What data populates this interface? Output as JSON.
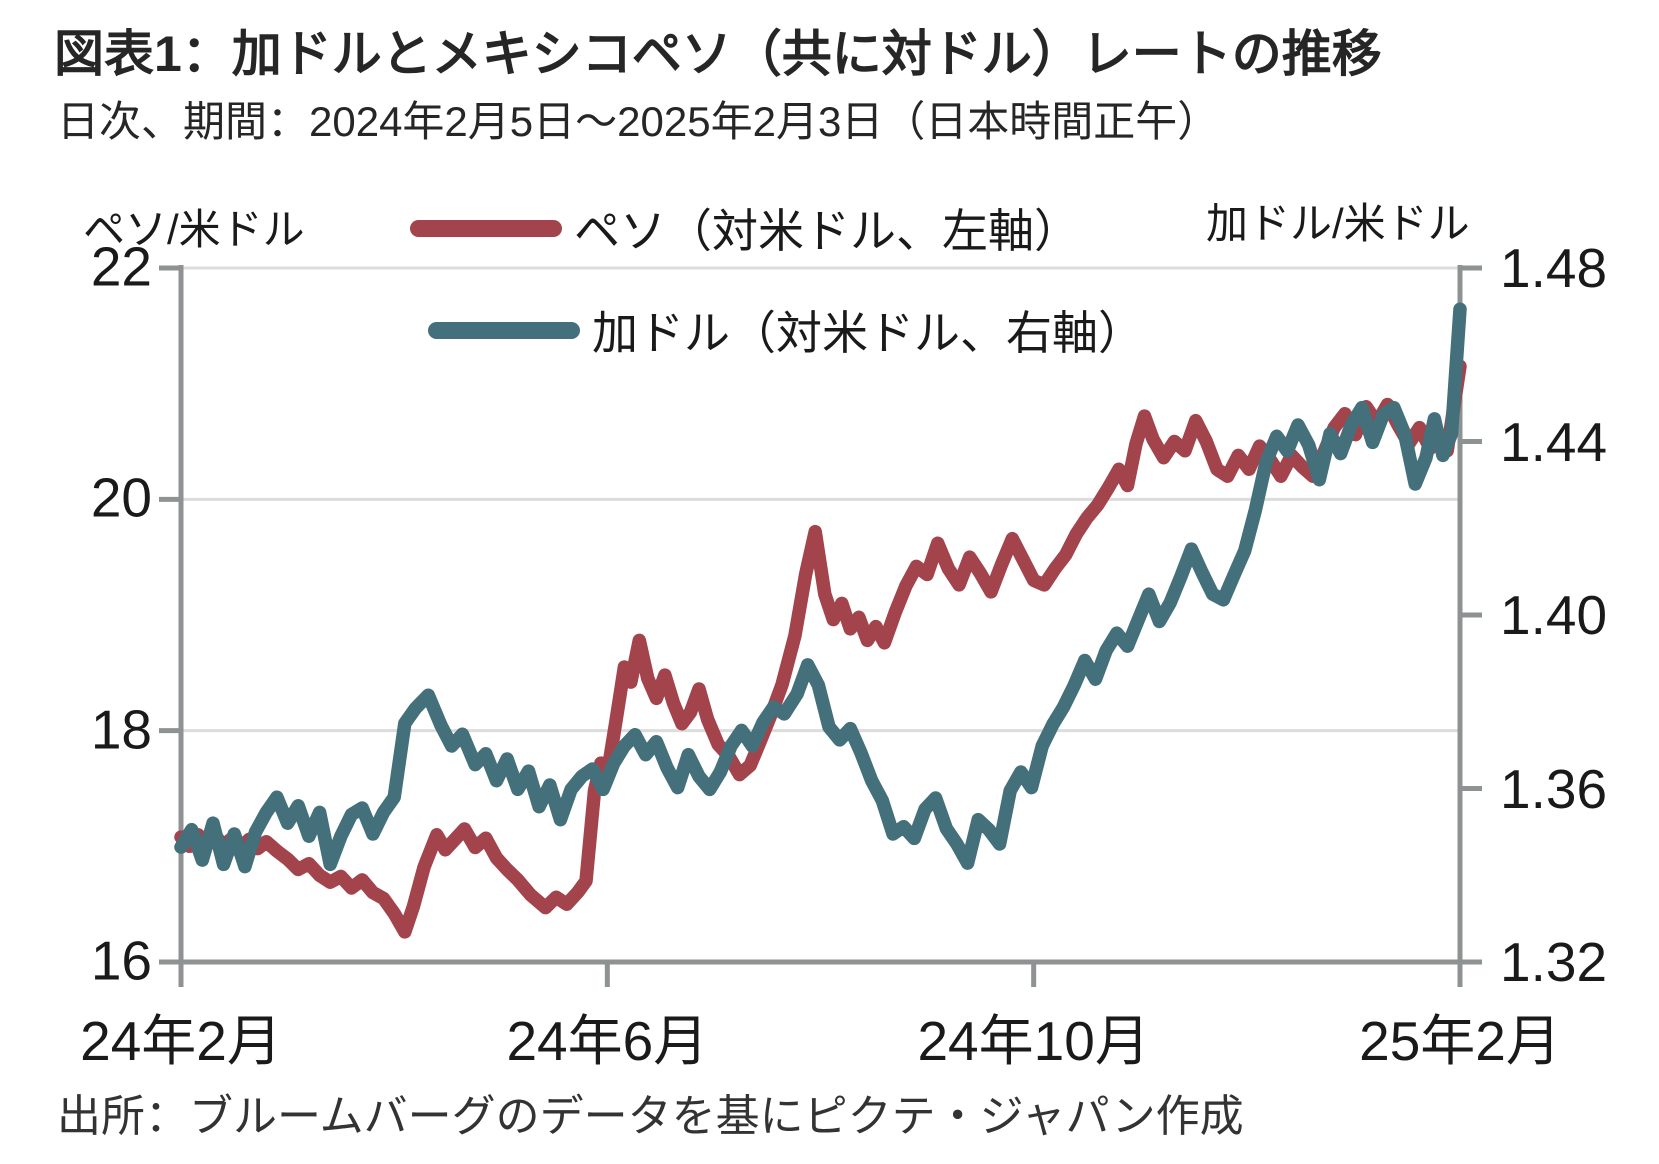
{
  "header": {
    "title": "図表1：加ドルとメキシコペソ（共に対ドル）レートの推移",
    "subtitle": "日次、期間：2024年2月5日～2025年2月3日（日本時間正午）"
  },
  "source_note": "出所：ブルームバーグのデータを基にピクテ・ジャパン作成",
  "chart_data": {
    "type": "line",
    "title": "加ドルとメキシコペソ（共に対ドル）レートの推移",
    "frequency_note": "日次、期間：2024年2月5日～2025年2月3日（日本時間正午）",
    "legend_position": "top-inside",
    "grid": "horizontal-only",
    "style": {
      "axis_color": "#8f9292",
      "grid_color": "#dcdcdc",
      "line_width": 13.5
    },
    "x_axis": {
      "range_months": [
        0,
        12
      ],
      "ticks": [
        {
          "label": "24年2月",
          "month": 0
        },
        {
          "label": "24年6月",
          "month": 4
        },
        {
          "label": "24年10月",
          "month": 8
        },
        {
          "label": "25年2月",
          "month": 12
        }
      ]
    },
    "left_axis": {
      "unit_label": "ペソ/米ドル",
      "ylim": [
        16,
        22
      ],
      "ticks": [
        {
          "label": "22",
          "value": 22
        },
        {
          "label": "20",
          "value": 20
        },
        {
          "label": "18",
          "value": 18
        },
        {
          "label": "16",
          "value": 16
        }
      ],
      "gridline_values": [
        22,
        20,
        18
      ]
    },
    "right_axis": {
      "unit_label": "加ドル/米ドル",
      "ylim": [
        1.32,
        1.48
      ],
      "ticks": [
        {
          "label": "1.48",
          "value": 1.48
        },
        {
          "label": "1.44",
          "value": 1.44
        },
        {
          "label": "1.40",
          "value": 1.4
        },
        {
          "label": "1.36",
          "value": 1.36
        },
        {
          "label": "1.32",
          "value": 1.32
        }
      ]
    },
    "series": [
      {
        "name": "ペソ（対米ドル、左軸）",
        "axis": "left",
        "color": "#a3434c",
        "points": [
          [
            0.0,
            17.08
          ],
          [
            0.08,
            17.0
          ],
          [
            0.16,
            17.1
          ],
          [
            0.24,
            17.02
          ],
          [
            0.32,
            17.09
          ],
          [
            0.4,
            17.01
          ],
          [
            0.48,
            17.07
          ],
          [
            0.56,
            16.99
          ],
          [
            0.64,
            17.06
          ],
          [
            0.72,
            16.98
          ],
          [
            0.8,
            17.04
          ],
          [
            0.9,
            16.96
          ],
          [
            1.0,
            16.89
          ],
          [
            1.1,
            16.8
          ],
          [
            1.2,
            16.85
          ],
          [
            1.3,
            16.75
          ],
          [
            1.4,
            16.69
          ],
          [
            1.5,
            16.74
          ],
          [
            1.6,
            16.64
          ],
          [
            1.7,
            16.71
          ],
          [
            1.8,
            16.6
          ],
          [
            1.9,
            16.55
          ],
          [
            2.0,
            16.42
          ],
          [
            2.1,
            16.26
          ],
          [
            2.18,
            16.48
          ],
          [
            2.28,
            16.82
          ],
          [
            2.4,
            17.1
          ],
          [
            2.48,
            16.97
          ],
          [
            2.56,
            17.05
          ],
          [
            2.66,
            17.15
          ],
          [
            2.76,
            16.99
          ],
          [
            2.86,
            17.07
          ],
          [
            2.96,
            16.9
          ],
          [
            3.06,
            16.8
          ],
          [
            3.16,
            16.71
          ],
          [
            3.28,
            16.58
          ],
          [
            3.42,
            16.47
          ],
          [
            3.52,
            16.56
          ],
          [
            3.62,
            16.5
          ],
          [
            3.72,
            16.6
          ],
          [
            3.8,
            16.7
          ],
          [
            3.88,
            17.48
          ],
          [
            3.94,
            17.72
          ],
          [
            4.0,
            17.62
          ],
          [
            4.08,
            18.08
          ],
          [
            4.16,
            18.55
          ],
          [
            4.22,
            18.42
          ],
          [
            4.3,
            18.78
          ],
          [
            4.38,
            18.45
          ],
          [
            4.46,
            18.28
          ],
          [
            4.54,
            18.48
          ],
          [
            4.62,
            18.24
          ],
          [
            4.7,
            18.06
          ],
          [
            4.78,
            18.16
          ],
          [
            4.86,
            18.36
          ],
          [
            4.94,
            18.1
          ],
          [
            5.04,
            17.88
          ],
          [
            5.14,
            17.78
          ],
          [
            5.24,
            17.62
          ],
          [
            5.34,
            17.7
          ],
          [
            5.44,
            17.92
          ],
          [
            5.54,
            18.15
          ],
          [
            5.64,
            18.4
          ],
          [
            5.76,
            18.82
          ],
          [
            5.86,
            19.35
          ],
          [
            5.95,
            19.72
          ],
          [
            6.04,
            19.18
          ],
          [
            6.12,
            18.96
          ],
          [
            6.2,
            19.1
          ],
          [
            6.28,
            18.88
          ],
          [
            6.36,
            18.98
          ],
          [
            6.44,
            18.78
          ],
          [
            6.52,
            18.9
          ],
          [
            6.6,
            18.76
          ],
          [
            6.7,
            19.02
          ],
          [
            6.8,
            19.25
          ],
          [
            6.9,
            19.42
          ],
          [
            7.0,
            19.35
          ],
          [
            7.1,
            19.62
          ],
          [
            7.2,
            19.4
          ],
          [
            7.3,
            19.26
          ],
          [
            7.4,
            19.5
          ],
          [
            7.5,
            19.36
          ],
          [
            7.6,
            19.2
          ],
          [
            7.7,
            19.44
          ],
          [
            7.8,
            19.66
          ],
          [
            7.9,
            19.48
          ],
          [
            8.0,
            19.3
          ],
          [
            8.1,
            19.26
          ],
          [
            8.2,
            19.4
          ],
          [
            8.3,
            19.52
          ],
          [
            8.4,
            19.7
          ],
          [
            8.5,
            19.84
          ],
          [
            8.6,
            19.95
          ],
          [
            8.7,
            20.1
          ],
          [
            8.8,
            20.26
          ],
          [
            8.88,
            20.12
          ],
          [
            8.96,
            20.48
          ],
          [
            9.04,
            20.72
          ],
          [
            9.12,
            20.52
          ],
          [
            9.22,
            20.36
          ],
          [
            9.32,
            20.5
          ],
          [
            9.42,
            20.42
          ],
          [
            9.52,
            20.68
          ],
          [
            9.62,
            20.5
          ],
          [
            9.72,
            20.26
          ],
          [
            9.82,
            20.2
          ],
          [
            9.92,
            20.38
          ],
          [
            10.02,
            20.26
          ],
          [
            10.12,
            20.46
          ],
          [
            10.22,
            20.34
          ],
          [
            10.32,
            20.2
          ],
          [
            10.42,
            20.38
          ],
          [
            10.52,
            20.28
          ],
          [
            10.62,
            20.2
          ],
          [
            10.72,
            20.4
          ],
          [
            10.82,
            20.62
          ],
          [
            10.92,
            20.74
          ],
          [
            11.02,
            20.56
          ],
          [
            11.12,
            20.8
          ],
          [
            11.22,
            20.66
          ],
          [
            11.32,
            20.82
          ],
          [
            11.42,
            20.64
          ],
          [
            11.52,
            20.48
          ],
          [
            11.62,
            20.62
          ],
          [
            11.72,
            20.44
          ],
          [
            11.8,
            20.54
          ],
          [
            11.88,
            20.42
          ],
          [
            12.0,
            21.15
          ]
        ]
      },
      {
        "name": "加ドル（対米ドル、右軸）",
        "axis": "right",
        "color": "#44707b",
        "points": [
          [
            0.0,
            1.3465
          ],
          [
            0.1,
            1.3505
          ],
          [
            0.2,
            1.3435
          ],
          [
            0.3,
            1.352
          ],
          [
            0.4,
            1.3425
          ],
          [
            0.5,
            1.3495
          ],
          [
            0.6,
            1.342
          ],
          [
            0.7,
            1.35
          ],
          [
            0.8,
            1.3545
          ],
          [
            0.9,
            1.358
          ],
          [
            1.0,
            1.352
          ],
          [
            1.1,
            1.356
          ],
          [
            1.2,
            1.349
          ],
          [
            1.3,
            1.3545
          ],
          [
            1.4,
            1.3425
          ],
          [
            1.5,
            1.349
          ],
          [
            1.6,
            1.354
          ],
          [
            1.7,
            1.3555
          ],
          [
            1.8,
            1.3495
          ],
          [
            1.9,
            1.3545
          ],
          [
            2.0,
            1.358
          ],
          [
            2.1,
            1.375
          ],
          [
            2.2,
            1.3785
          ],
          [
            2.32,
            1.3815
          ],
          [
            2.44,
            1.3745
          ],
          [
            2.54,
            1.3698
          ],
          [
            2.64,
            1.3725
          ],
          [
            2.76,
            1.3655
          ],
          [
            2.86,
            1.368
          ],
          [
            2.96,
            1.3618
          ],
          [
            3.06,
            1.3668
          ],
          [
            3.16,
            1.3598
          ],
          [
            3.26,
            1.364
          ],
          [
            3.36,
            1.3558
          ],
          [
            3.46,
            1.3608
          ],
          [
            3.56,
            1.3528
          ],
          [
            3.66,
            1.3598
          ],
          [
            3.76,
            1.3628
          ],
          [
            3.86,
            1.3645
          ],
          [
            3.96,
            1.3598
          ],
          [
            4.06,
            1.3658
          ],
          [
            4.16,
            1.3698
          ],
          [
            4.26,
            1.3724
          ],
          [
            4.36,
            1.3678
          ],
          [
            4.46,
            1.3708
          ],
          [
            4.56,
            1.3648
          ],
          [
            4.66,
            1.3602
          ],
          [
            4.76,
            1.3678
          ],
          [
            4.86,
            1.3628
          ],
          [
            4.96,
            1.3598
          ],
          [
            5.06,
            1.3638
          ],
          [
            5.16,
            1.3698
          ],
          [
            5.26,
            1.3734
          ],
          [
            5.36,
            1.3698
          ],
          [
            5.46,
            1.3752
          ],
          [
            5.56,
            1.3788
          ],
          [
            5.66,
            1.3772
          ],
          [
            5.78,
            1.3818
          ],
          [
            5.88,
            1.3885
          ],
          [
            5.98,
            1.3838
          ],
          [
            6.08,
            1.3742
          ],
          [
            6.18,
            1.3712
          ],
          [
            6.28,
            1.3738
          ],
          [
            6.38,
            1.3682
          ],
          [
            6.48,
            1.3618
          ],
          [
            6.58,
            1.3572
          ],
          [
            6.68,
            1.3495
          ],
          [
            6.78,
            1.3512
          ],
          [
            6.88,
            1.3485
          ],
          [
            6.98,
            1.3552
          ],
          [
            7.08,
            1.3578
          ],
          [
            7.18,
            1.3508
          ],
          [
            7.28,
            1.3472
          ],
          [
            7.38,
            1.3428
          ],
          [
            7.48,
            1.3528
          ],
          [
            7.58,
            1.3505
          ],
          [
            7.68,
            1.3472
          ],
          [
            7.78,
            1.3595
          ],
          [
            7.88,
            1.3638
          ],
          [
            7.98,
            1.3602
          ],
          [
            8.08,
            1.3698
          ],
          [
            8.18,
            1.3748
          ],
          [
            8.28,
            1.3788
          ],
          [
            8.38,
            1.3838
          ],
          [
            8.48,
            1.3895
          ],
          [
            8.58,
            1.3852
          ],
          [
            8.68,
            1.3918
          ],
          [
            8.78,
            1.3958
          ],
          [
            8.88,
            1.3928
          ],
          [
            8.98,
            1.3988
          ],
          [
            9.08,
            1.4048
          ],
          [
            9.18,
            1.3985
          ],
          [
            9.28,
            1.4028
          ],
          [
            9.38,
            1.4088
          ],
          [
            9.48,
            1.4152
          ],
          [
            9.58,
            1.4098
          ],
          [
            9.68,
            1.4048
          ],
          [
            9.78,
            1.4035
          ],
          [
            9.88,
            1.4092
          ],
          [
            9.98,
            1.4148
          ],
          [
            10.08,
            1.4242
          ],
          [
            10.18,
            1.4352
          ],
          [
            10.28,
            1.4412
          ],
          [
            10.38,
            1.4378
          ],
          [
            10.48,
            1.4438
          ],
          [
            10.58,
            1.4392
          ],
          [
            10.68,
            1.4312
          ],
          [
            10.78,
            1.4418
          ],
          [
            10.88,
            1.4372
          ],
          [
            10.98,
            1.4438
          ],
          [
            11.08,
            1.4478
          ],
          [
            11.18,
            1.4398
          ],
          [
            11.28,
            1.4462
          ],
          [
            11.38,
            1.4478
          ],
          [
            11.48,
            1.4418
          ],
          [
            11.58,
            1.4302
          ],
          [
            11.68,
            1.4362
          ],
          [
            11.76,
            1.4452
          ],
          [
            11.84,
            1.4368
          ],
          [
            11.92,
            1.4418
          ],
          [
            12.0,
            1.4705
          ]
        ]
      }
    ]
  }
}
